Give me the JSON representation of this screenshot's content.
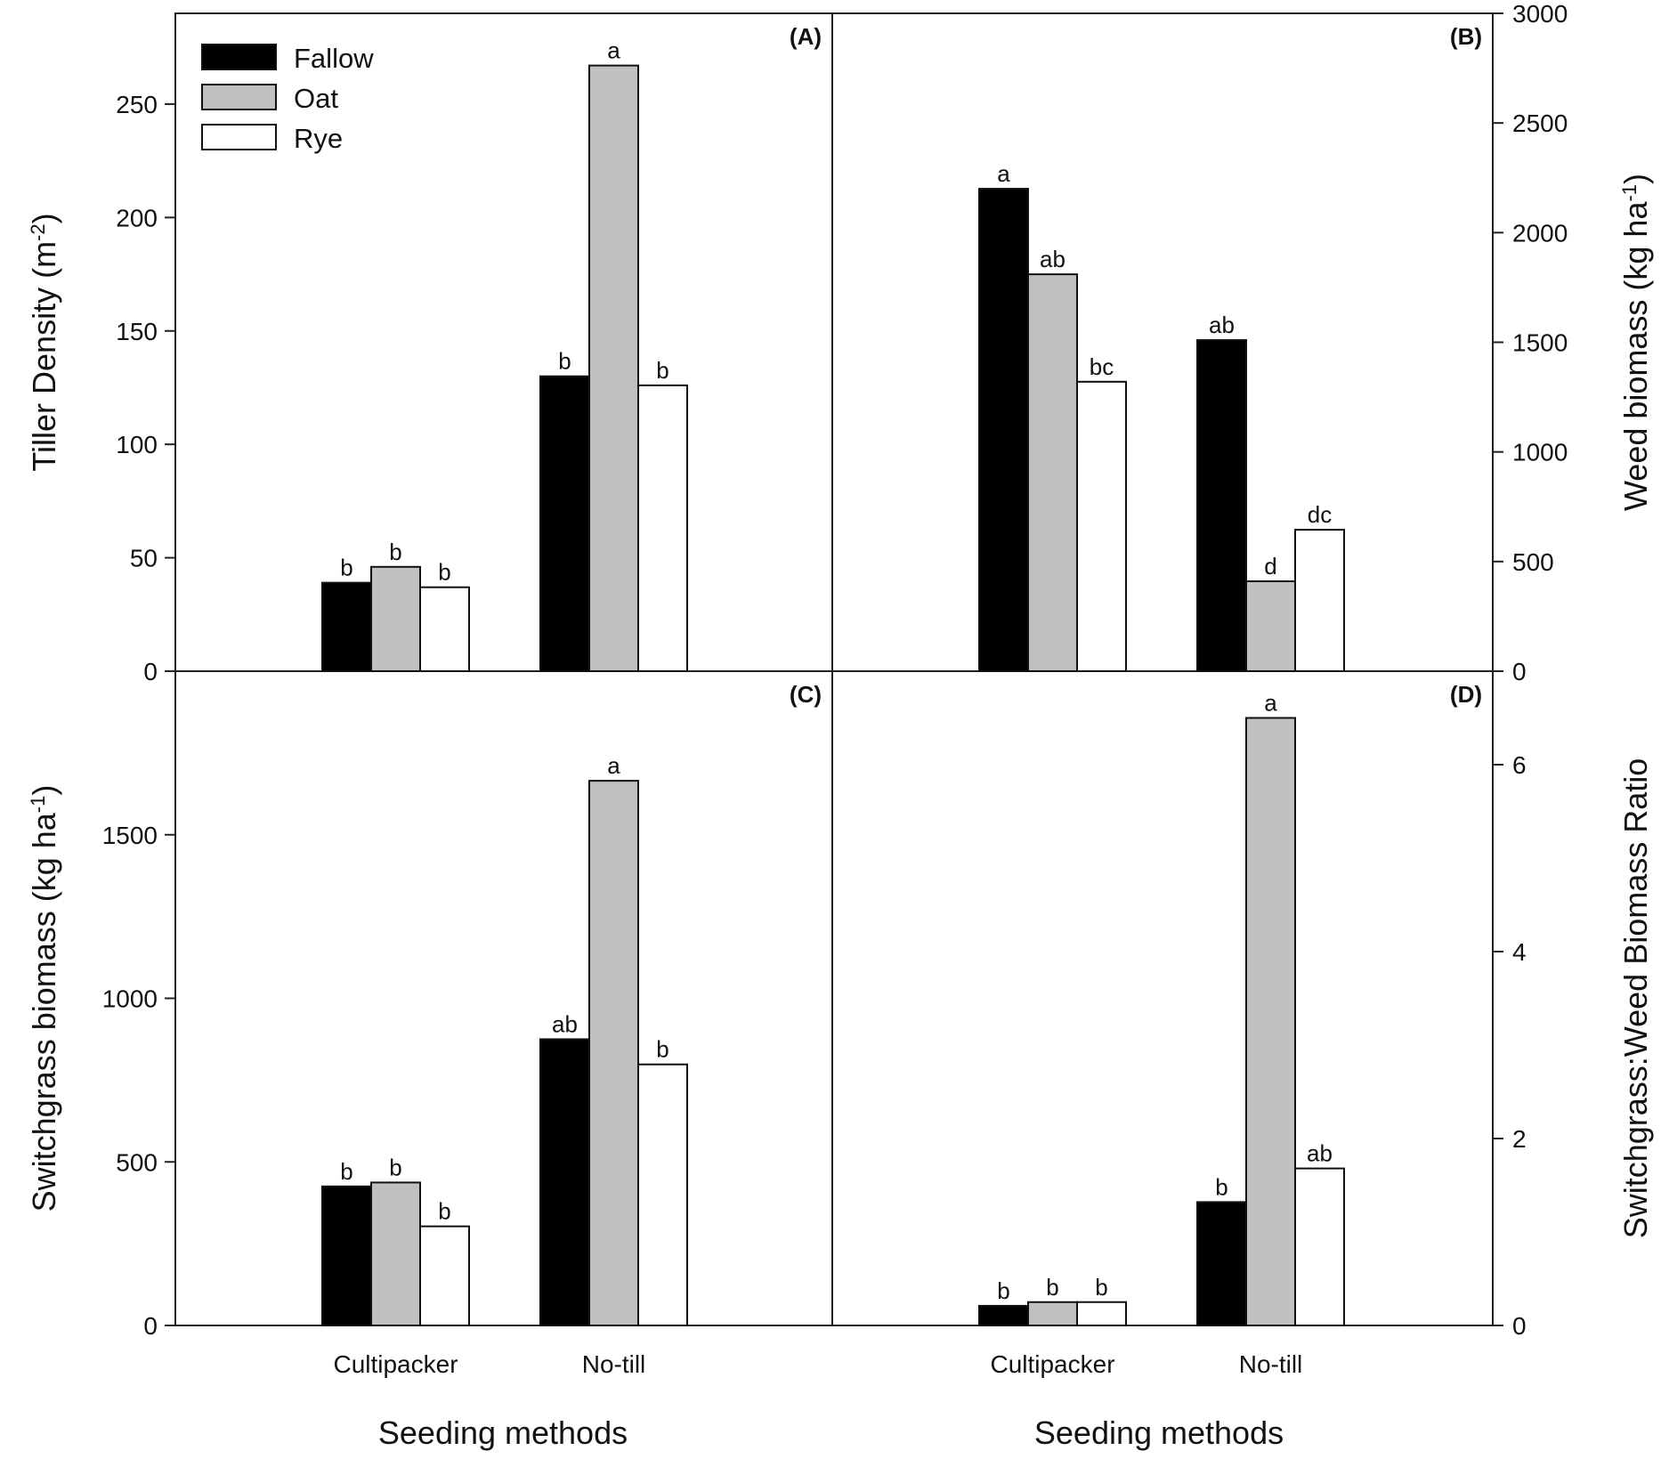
{
  "chart_data": {
    "type": "bar",
    "layout": "2x2 panels with shared categories",
    "legend": {
      "placement": "top-left",
      "entries": [
        {
          "name": "Fallow",
          "color": "#000000"
        },
        {
          "name": "Oat",
          "color": "#c0c0c0"
        },
        {
          "name": "Rye",
          "color": "#ffffff"
        }
      ]
    },
    "xlabel": "Seeding methods",
    "categories": [
      "Cultipacker",
      "No-till"
    ],
    "panels": [
      {
        "id": "A",
        "label": "(A)",
        "ylabel": "Tiller Density (m",
        "ylabel_sup": "-2",
        "ylabel_end": ")",
        "ylim": [
          0,
          290
        ],
        "yticks": [
          0,
          50,
          100,
          150,
          200,
          250
        ],
        "axis_side": "left",
        "series": [
          {
            "name": "Fallow",
            "values": [
              39,
              130
            ],
            "letters": [
              "b",
              "b"
            ]
          },
          {
            "name": "Oat",
            "values": [
              46,
              267
            ],
            "letters": [
              "b",
              "a"
            ]
          },
          {
            "name": "Rye",
            "values": [
              37,
              126
            ],
            "letters": [
              "b",
              "b"
            ]
          }
        ]
      },
      {
        "id": "B",
        "label": "(B)",
        "ylabel": "Weed biomass (kg ha",
        "ylabel_sup": "-1",
        "ylabel_end": ")",
        "ylim": [
          0,
          3000
        ],
        "yticks": [
          0,
          500,
          1000,
          1500,
          2000,
          2500,
          3000
        ],
        "axis_side": "right",
        "series": [
          {
            "name": "Fallow",
            "values": [
              2200,
              1510
            ],
            "letters": [
              "a",
              "ab"
            ]
          },
          {
            "name": "Oat",
            "values": [
              1810,
              410
            ],
            "letters": [
              "ab",
              "d"
            ]
          },
          {
            "name": "Rye",
            "values": [
              1320,
              645
            ],
            "letters": [
              "bc",
              "dc"
            ]
          }
        ]
      },
      {
        "id": "C",
        "label": "(C)",
        "ylabel": "Switchgrass biomass (kg ha",
        "ylabel_sup": "-1",
        "ylabel_end": ")",
        "ylim": [
          0,
          2000
        ],
        "yticks": [
          0,
          500,
          1000,
          1500
        ],
        "axis_side": "left",
        "series": [
          {
            "name": "Fallow",
            "values": [
              425,
              875
            ],
            "letters": [
              "b",
              "ab"
            ]
          },
          {
            "name": "Oat",
            "values": [
              437,
              1665
            ],
            "letters": [
              "b",
              "a"
            ]
          },
          {
            "name": "Rye",
            "values": [
              303,
              798
            ],
            "letters": [
              "b",
              "b"
            ]
          }
        ]
      },
      {
        "id": "D",
        "label": "(D)",
        "ylabel": "Switchgrass:Weed Biomass Ratio",
        "ylabel_sup": "",
        "ylabel_end": "",
        "ylim": [
          0,
          7
        ],
        "yticks": [
          0,
          2,
          4,
          6
        ],
        "axis_side": "right",
        "series": [
          {
            "name": "Fallow",
            "values": [
              0.21,
              1.32
            ],
            "letters": [
              "b",
              "b"
            ]
          },
          {
            "name": "Oat",
            "values": [
              0.25,
              6.5
            ],
            "letters": [
              "b",
              "a"
            ]
          },
          {
            "name": "Rye",
            "values": [
              0.25,
              1.68
            ],
            "letters": [
              "b",
              "ab"
            ]
          }
        ]
      }
    ]
  }
}
